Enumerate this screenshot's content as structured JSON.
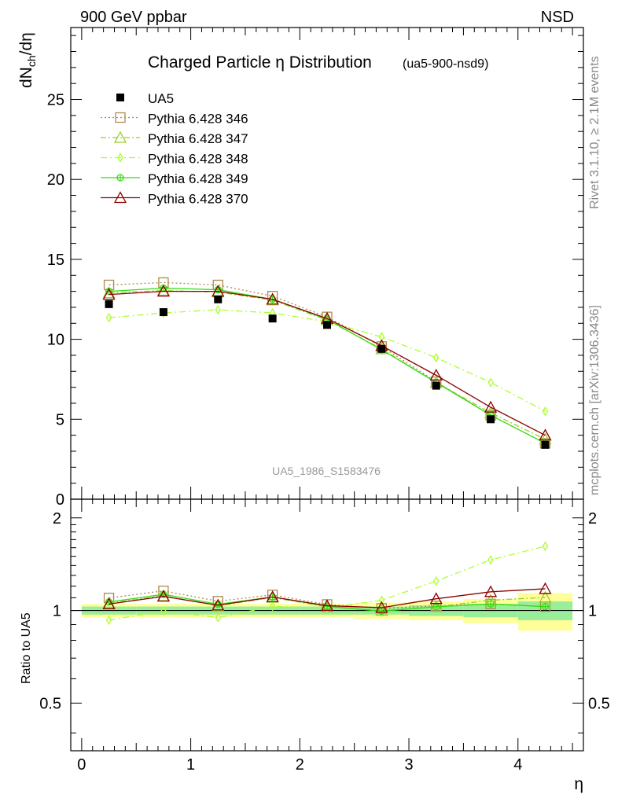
{
  "header": {
    "left": "900 GeV ppbar",
    "right": "NSD"
  },
  "side_labels": {
    "rivet": "Rivet 3.1.10, ≥ 2.1M events",
    "mcplots": "mcplots.cern.ch [arXiv:1306.3436]"
  },
  "chart_data": {
    "type": "scatter",
    "title": "Charged Particle η Distribution",
    "subtitle": "(ua5-900-nsd9)",
    "watermark": "UA5_1986_S1583476",
    "xlabel": "η",
    "ylabel": "dN_ch/dη",
    "ratio_ylabel": "Ratio to UA5",
    "xlim": [
      -0.1,
      4.6
    ],
    "ylim": [
      0,
      29.5
    ],
    "ratio_ylim": [
      0.35,
      2.3
    ],
    "x_ticks": [
      "0",
      "1",
      "2",
      "3",
      "4"
    ],
    "y_ticks": [
      "0",
      "5",
      "10",
      "15",
      "20",
      "25"
    ],
    "ratio_ticks": [
      "0.5",
      "1",
      "2"
    ],
    "legend_position": "top-left",
    "x": [
      0.25,
      0.75,
      1.25,
      1.75,
      2.25,
      2.75,
      3.25,
      3.75,
      4.25
    ],
    "data": {
      "name": "UA5",
      "values": [
        12.2,
        11.7,
        12.5,
        11.3,
        10.9,
        9.4,
        7.1,
        5.0,
        3.4
      ],
      "band_green_frac": [
        0.03,
        0.03,
        0.03,
        0.03,
        0.03,
        0.03,
        0.04,
        0.05,
        0.07
      ],
      "band_yellow_frac": [
        0.05,
        0.05,
        0.05,
        0.05,
        0.05,
        0.06,
        0.07,
        0.09,
        0.14
      ]
    },
    "series": [
      {
        "name": "Pythia 6.428 346",
        "color": "#b08a4c",
        "marker": "open-square",
        "dash": "2,3",
        "values": [
          13.4,
          13.55,
          13.4,
          12.7,
          11.4,
          9.55,
          7.35,
          5.25,
          3.5
        ]
      },
      {
        "name": "Pythia 6.428 347",
        "color": "#9acd32",
        "marker": "open-triangle",
        "dash": "7,3,2,3",
        "values": [
          12.9,
          13.05,
          12.95,
          12.45,
          11.2,
          9.4,
          7.3,
          5.4,
          3.75
        ]
      },
      {
        "name": "Pythia 6.428 348",
        "color": "#adff2f",
        "marker": "open-diamond",
        "dash": "8,4,2,4",
        "values": [
          11.35,
          11.65,
          11.85,
          11.65,
          11.1,
          10.15,
          8.85,
          7.3,
          5.5
        ]
      },
      {
        "name": "Pythia 6.428 349",
        "color": "#33dd11",
        "marker": "open-circle-cross",
        "dash": "",
        "values": [
          13.0,
          13.2,
          13.1,
          12.5,
          11.25,
          9.35,
          7.3,
          5.25,
          3.5
        ]
      },
      {
        "name": "Pythia 6.428 370",
        "color": "#8b0000",
        "marker": "open-triangle",
        "dash": "",
        "values": [
          12.8,
          13.0,
          13.0,
          12.5,
          11.3,
          9.6,
          7.75,
          5.75,
          4.0
        ]
      }
    ]
  }
}
